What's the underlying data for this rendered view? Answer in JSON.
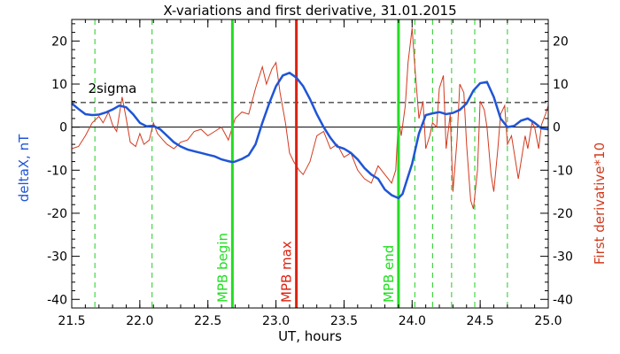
{
  "chart_data": {
    "type": "line",
    "title": "X-variations and first derivative, 31.01.2015",
    "xlabel": "UT, hours",
    "ylabel_left": "deltaX, nT",
    "ylabel_right": "First derivative*10",
    "xlim": [
      21.5,
      25.0
    ],
    "ylim_left": [
      -42,
      25
    ],
    "ylim_right": [
      -42,
      25
    ],
    "x_ticks": [
      "21.5",
      "22.0",
      "22.5",
      "23.0",
      "23.5",
      "24.0",
      "24.5",
      "25.0"
    ],
    "y_ticks": [
      "20",
      "10",
      "0",
      "-10",
      "-20",
      "-30",
      "-40"
    ],
    "colors": {
      "deltaX": "#1f55d6",
      "derivative": "#d23a1e",
      "mpb_boundary": "#22dd22",
      "mpb_max": "#dd2211",
      "minor_marker": "#22cc22",
      "axes": "#000000"
    },
    "threshold": {
      "label": "2sigma",
      "value": 5.7
    },
    "zero_line": 0,
    "vertical_markers": [
      {
        "x": 22.68,
        "label": "MPB begin",
        "kind": "mpb_boundary"
      },
      {
        "x": 23.15,
        "label": "MPB max",
        "kind": "mpb_max"
      },
      {
        "x": 23.9,
        "label": "MPB end",
        "kind": "mpb_boundary"
      }
    ],
    "dashed_markers": [
      21.67,
      22.09,
      24.02,
      24.15,
      24.29,
      24.46,
      24.7
    ],
    "series": [
      {
        "name": "deltaX",
        "axis": "left",
        "x": [
          21.5,
          21.55,
          21.6,
          21.65,
          21.7,
          21.75,
          21.8,
          21.85,
          21.9,
          21.95,
          22.0,
          22.05,
          22.1,
          22.15,
          22.2,
          22.25,
          22.3,
          22.35,
          22.4,
          22.45,
          22.5,
          22.55,
          22.6,
          22.65,
          22.68,
          22.7,
          22.75,
          22.8,
          22.85,
          22.9,
          22.95,
          23.0,
          23.05,
          23.1,
          23.15,
          23.2,
          23.25,
          23.3,
          23.35,
          23.4,
          23.45,
          23.5,
          23.55,
          23.6,
          23.65,
          23.7,
          23.75,
          23.8,
          23.85,
          23.9,
          23.93,
          23.95,
          24.0,
          24.05,
          24.1,
          24.15,
          24.2,
          24.25,
          24.3,
          24.35,
          24.4,
          24.45,
          24.5,
          24.55,
          24.6,
          24.65,
          24.7,
          24.75,
          24.8,
          24.85,
          24.9,
          24.95,
          25.0
        ],
        "y": [
          5.5,
          4.2,
          3.0,
          2.8,
          2.9,
          3.4,
          4.1,
          5.0,
          4.6,
          3.0,
          1.0,
          0.2,
          0.3,
          -0.5,
          -2.0,
          -3.5,
          -4.5,
          -5.2,
          -5.6,
          -6.0,
          -6.4,
          -6.8,
          -7.5,
          -7.9,
          -8.1,
          -8.0,
          -7.4,
          -6.5,
          -4.0,
          1.0,
          5.5,
          9.5,
          12.0,
          12.6,
          11.5,
          9.5,
          6.5,
          3.0,
          0.0,
          -2.5,
          -4.5,
          -5.0,
          -6.0,
          -7.5,
          -9.5,
          -11.0,
          -12.0,
          -14.5,
          -15.8,
          -16.5,
          -15.5,
          -13.5,
          -8.5,
          -1.5,
          2.8,
          3.2,
          3.5,
          3.0,
          3.3,
          4.0,
          5.5,
          8.5,
          10.2,
          10.5,
          7.0,
          2.0,
          0.0,
          0.3,
          1.5,
          2.0,
          1.0,
          -0.3,
          -0.5
        ]
      },
      {
        "name": "First derivative*10",
        "axis": "right",
        "x": [
          21.5,
          21.55,
          21.6,
          21.65,
          21.7,
          21.73,
          21.77,
          21.8,
          21.83,
          21.87,
          21.9,
          21.93,
          21.97,
          22.0,
          22.03,
          22.07,
          22.1,
          22.13,
          22.17,
          22.2,
          22.25,
          22.3,
          22.35,
          22.4,
          22.45,
          22.5,
          22.55,
          22.6,
          22.65,
          22.7,
          22.75,
          22.8,
          22.85,
          22.9,
          22.93,
          22.97,
          23.0,
          23.03,
          23.07,
          23.1,
          23.13,
          23.17,
          23.2,
          23.25,
          23.3,
          23.35,
          23.4,
          23.45,
          23.5,
          23.55,
          23.6,
          23.65,
          23.7,
          23.75,
          23.8,
          23.85,
          23.88,
          23.9,
          23.92,
          23.95,
          23.97,
          24.0,
          24.02,
          24.05,
          24.08,
          24.1,
          24.13,
          24.15,
          24.18,
          24.2,
          24.23,
          24.25,
          24.28,
          24.3,
          24.33,
          24.35,
          24.38,
          24.4,
          24.43,
          24.45,
          24.48,
          24.5,
          24.53,
          24.55,
          24.58,
          24.6,
          24.63,
          24.65,
          24.68,
          24.7,
          24.73,
          24.75,
          24.78,
          24.8,
          24.83,
          24.85,
          24.88,
          24.9,
          24.93,
          24.95,
          24.98,
          25.0
        ],
        "y": [
          -5.0,
          -4.5,
          -2.0,
          1.0,
          2.5,
          1.0,
          3.5,
          0.5,
          -1.0,
          7.0,
          2.0,
          -3.5,
          -4.5,
          -1.5,
          -4.0,
          -3.0,
          1.0,
          -1.5,
          -3.0,
          -4.0,
          -5.0,
          -3.5,
          -3.0,
          -1.0,
          -0.5,
          -2.0,
          -1.0,
          0.0,
          -3.0,
          2.0,
          3.5,
          3.0,
          9.0,
          14.0,
          10.0,
          13.5,
          15.0,
          8.0,
          1.0,
          -6.0,
          -8.0,
          -10.0,
          -11.0,
          -8.0,
          -2.0,
          -1.0,
          -5.0,
          -4.0,
          -7.0,
          -6.0,
          -10.0,
          -12.0,
          -13.0,
          -9.0,
          -11.0,
          -13.0,
          -10.0,
          2.0,
          -2.0,
          5.0,
          15.0,
          23.0,
          14.0,
          2.0,
          6.0,
          -5.0,
          -2.0,
          1.0,
          0.0,
          9.0,
          12.0,
          -5.0,
          3.0,
          -15.0,
          -3.0,
          10.0,
          8.0,
          -4.0,
          -17.0,
          -19.0,
          -10.0,
          6.0,
          4.0,
          0.0,
          -11.0,
          -15.0,
          -5.0,
          3.0,
          5.0,
          -4.0,
          -2.0,
          -6.0,
          -12.0,
          -8.0,
          -2.0,
          -5.0,
          1.0,
          0.0,
          -5.0,
          0.5,
          3.0,
          5.0
        ]
      }
    ]
  }
}
